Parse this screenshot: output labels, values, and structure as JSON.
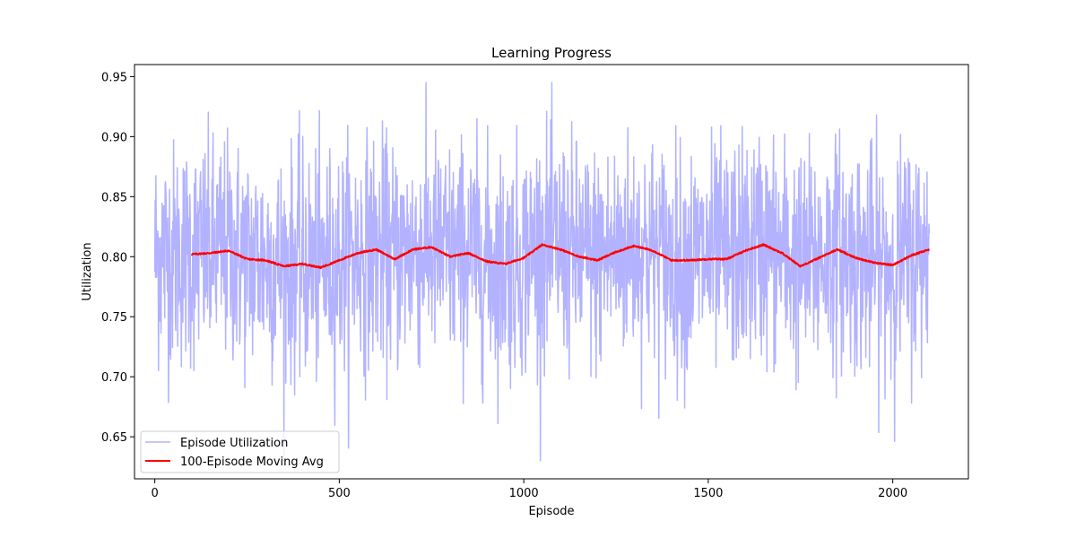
{
  "chart_data": {
    "type": "line",
    "title": "Learning Progress",
    "xlabel": "Episode",
    "ylabel": "Utilization",
    "xlim": [
      -55,
      2205
    ],
    "ylim": [
      0.615,
      0.96
    ],
    "x_ticks": [
      0,
      500,
      1000,
      1500,
      2000
    ],
    "y_ticks": [
      0.65,
      0.7,
      0.75,
      0.8,
      0.85,
      0.9,
      0.95
    ],
    "x_tick_labels": [
      "0",
      "500",
      "1000",
      "1500",
      "2000"
    ],
    "y_tick_labels": [
      "0.65",
      "0.70",
      "0.75",
      "0.80",
      "0.85",
      "0.90",
      "0.95"
    ],
    "grid": false,
    "legend_position": "lower-left",
    "series": [
      {
        "name": "Episode Utilization",
        "color": "#b2b2ff",
        "x_start": 0,
        "x_end": 2099,
        "mean": 0.8,
        "std": 0.047,
        "range": [
          0.63,
          0.945
        ]
      },
      {
        "name": "100-Episode Moving Avg",
        "color": "#ff0000",
        "x": [
          99,
          150,
          200,
          250,
          300,
          350,
          400,
          450,
          500,
          550,
          600,
          650,
          700,
          750,
          800,
          850,
          900,
          950,
          1000,
          1050,
          1100,
          1150,
          1200,
          1250,
          1300,
          1350,
          1400,
          1450,
          1500,
          1550,
          1600,
          1650,
          1700,
          1750,
          1800,
          1850,
          1900,
          1950,
          2000,
          2050,
          2099
        ],
        "y": [
          0.802,
          0.803,
          0.805,
          0.798,
          0.797,
          0.792,
          0.794,
          0.791,
          0.797,
          0.803,
          0.806,
          0.798,
          0.806,
          0.808,
          0.8,
          0.803,
          0.796,
          0.794,
          0.799,
          0.81,
          0.806,
          0.8,
          0.797,
          0.804,
          0.809,
          0.805,
          0.797,
          0.797,
          0.798,
          0.798,
          0.805,
          0.81,
          0.803,
          0.792,
          0.799,
          0.806,
          0.799,
          0.795,
          0.793,
          0.801,
          0.806
        ]
      }
    ]
  }
}
